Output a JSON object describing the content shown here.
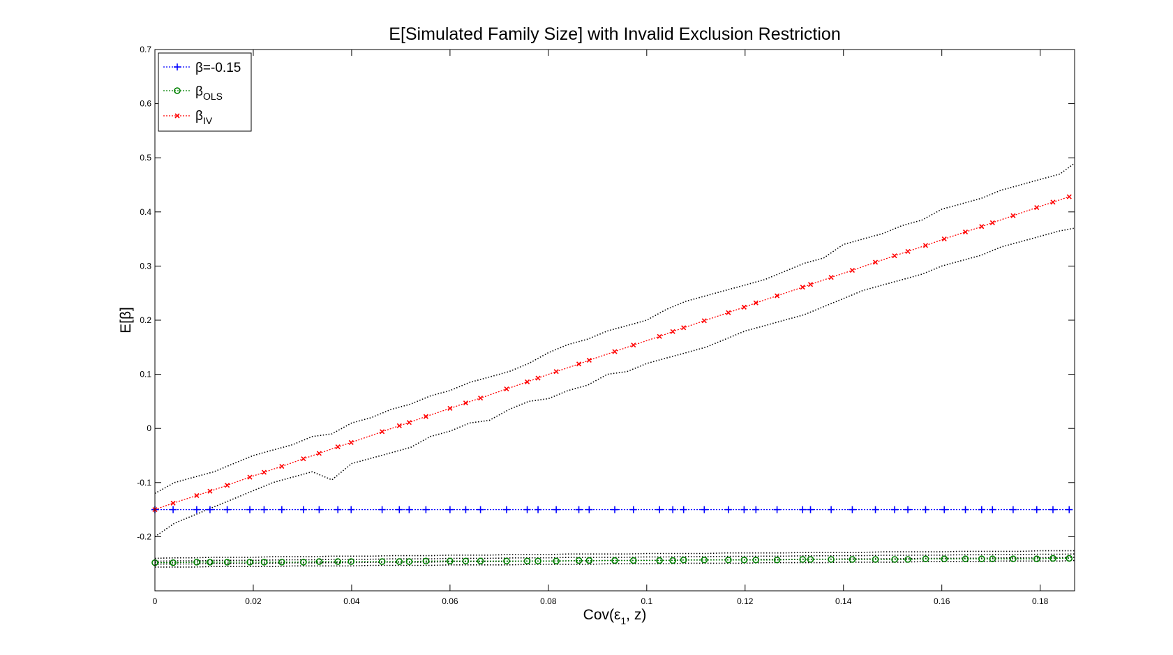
{
  "chart_data": {
    "type": "line",
    "title": "E[Simulated Family Size] with Invalid Exclusion Restriction",
    "xlabel": {
      "main": "Cov(ε",
      "sub": "1",
      "tail": ", z)"
    },
    "ylabel": "E[β]",
    "xlim": [
      0,
      0.187
    ],
    "ylim": [
      -0.3,
      0.7
    ],
    "x_ticks": [
      0,
      0.02,
      0.04,
      0.06,
      0.08,
      0.1,
      0.12,
      0.14,
      0.16,
      0.18
    ],
    "x_tick_labels": [
      "0",
      "0.02",
      "0.04",
      "0.06",
      "0.08",
      "0.1",
      "0.12",
      "0.14",
      "0.16",
      "0.18"
    ],
    "y_ticks": [
      -0.2,
      -0.1,
      0,
      0.1,
      0.2,
      0.3,
      0.4,
      0.5,
      0.6,
      0.7
    ],
    "y_tick_labels": [
      "-0.2",
      "-0.1",
      "0",
      "0.1",
      "0.2",
      "0.3",
      "0.4",
      "0.5",
      "0.6",
      "0.7"
    ],
    "grid": false,
    "legend_position": "top-left",
    "x": [
      0,
      0.0037,
      0.0085,
      0.0112,
      0.0147,
      0.0193,
      0.0222,
      0.0258,
      0.0302,
      0.0334,
      0.0372,
      0.0399,
      0.0462,
      0.0497,
      0.0517,
      0.0551,
      0.06,
      0.0632,
      0.0662,
      0.0715,
      0.0757,
      0.0779,
      0.0816,
      0.0862,
      0.0883,
      0.0935,
      0.0973,
      0.1026,
      0.1053,
      0.1075,
      0.1117,
      0.1166,
      0.1198,
      0.1222,
      0.1265,
      0.1317,
      0.1333,
      0.1375,
      0.1418,
      0.1465,
      0.1504,
      0.1531,
      0.1567,
      0.1605,
      0.1648,
      0.1681,
      0.1703,
      0.1745,
      0.1793,
      0.1826,
      0.1859
    ],
    "series": [
      {
        "name": "β=-0.15",
        "color": "#0000ff",
        "marker": "plus",
        "y": [
          -0.15,
          -0.15,
          -0.15,
          -0.15,
          -0.15,
          -0.15,
          -0.15,
          -0.15,
          -0.15,
          -0.15,
          -0.15,
          -0.15,
          -0.15,
          -0.15,
          -0.15,
          -0.15,
          -0.15,
          -0.15,
          -0.15,
          -0.15,
          -0.15,
          -0.15,
          -0.15,
          -0.15,
          -0.15,
          -0.15,
          -0.15,
          -0.15,
          -0.15,
          -0.15,
          -0.15,
          -0.15,
          -0.15,
          -0.15,
          -0.15,
          -0.15,
          -0.15,
          -0.15,
          -0.15,
          -0.15,
          -0.15,
          -0.15,
          -0.15,
          -0.15,
          -0.15,
          -0.15,
          -0.15,
          -0.15,
          -0.15,
          -0.15,
          -0.15
        ]
      },
      {
        "name": "β",
        "name_sub": "OLS",
        "color": "#008000",
        "marker": "circle",
        "y": [
          -0.248,
          -0.248,
          -0.247,
          -0.247,
          -0.247,
          -0.247,
          -0.247,
          -0.247,
          -0.247,
          -0.246,
          -0.246,
          -0.246,
          -0.246,
          -0.246,
          -0.246,
          -0.245,
          -0.245,
          -0.245,
          -0.245,
          -0.245,
          -0.245,
          -0.245,
          -0.245,
          -0.244,
          -0.244,
          -0.244,
          -0.244,
          -0.244,
          -0.244,
          -0.243,
          -0.243,
          -0.243,
          -0.243,
          -0.243,
          -0.243,
          -0.242,
          -0.242,
          -0.242,
          -0.242,
          -0.242,
          -0.242,
          -0.242,
          -0.241,
          -0.241,
          -0.241,
          -0.241,
          -0.241,
          -0.241,
          -0.241,
          -0.24,
          -0.24
        ]
      },
      {
        "name": "β",
        "name_sub": "IV",
        "color": "#ff0000",
        "marker": "x",
        "y": [
          -0.15,
          -0.138,
          -0.124,
          -0.116,
          -0.105,
          -0.09,
          -0.081,
          -0.07,
          -0.056,
          -0.046,
          -0.034,
          -0.026,
          -0.006,
          0.005,
          0.011,
          0.022,
          0.037,
          0.047,
          0.056,
          0.073,
          0.086,
          0.093,
          0.105,
          0.119,
          0.126,
          0.142,
          0.154,
          0.17,
          0.179,
          0.186,
          0.199,
          0.214,
          0.224,
          0.232,
          0.245,
          0.261,
          0.266,
          0.279,
          0.292,
          0.307,
          0.319,
          0.327,
          0.338,
          0.35,
          0.363,
          0.373,
          0.38,
          0.393,
          0.408,
          0.418,
          0.428
        ]
      }
    ],
    "band_x": [
      0,
      0.004,
      0.008,
      0.012,
      0.016,
      0.02,
      0.024,
      0.028,
      0.032,
      0.036,
      0.04,
      0.044,
      0.048,
      0.052,
      0.056,
      0.06,
      0.064,
      0.068,
      0.072,
      0.076,
      0.08,
      0.084,
      0.088,
      0.092,
      0.096,
      0.1,
      0.104,
      0.108,
      0.112,
      0.116,
      0.12,
      0.124,
      0.128,
      0.132,
      0.136,
      0.14,
      0.144,
      0.148,
      0.152,
      0.156,
      0.16,
      0.164,
      0.168,
      0.172,
      0.176,
      0.18,
      0.184,
      0.187
    ],
    "iv_upper": [
      -0.12,
      -0.1,
      -0.09,
      -0.08,
      -0.065,
      -0.05,
      -0.04,
      -0.03,
      -0.015,
      -0.01,
      0.01,
      0.02,
      0.035,
      0.045,
      0.06,
      0.07,
      0.085,
      0.095,
      0.105,
      0.12,
      0.14,
      0.155,
      0.165,
      0.18,
      0.19,
      0.2,
      0.22,
      0.235,
      0.245,
      0.255,
      0.265,
      0.275,
      0.29,
      0.305,
      0.315,
      0.34,
      0.35,
      0.36,
      0.375,
      0.385,
      0.405,
      0.415,
      0.425,
      0.44,
      0.45,
      0.46,
      0.47,
      0.49
    ],
    "iv_lower": [
      -0.2,
      -0.175,
      -0.16,
      -0.145,
      -0.13,
      -0.115,
      -0.1,
      -0.09,
      -0.08,
      -0.095,
      -0.065,
      -0.055,
      -0.045,
      -0.035,
      -0.015,
      -0.005,
      0.01,
      0.015,
      0.035,
      0.05,
      0.055,
      0.07,
      0.08,
      0.1,
      0.105,
      0.12,
      0.13,
      0.14,
      0.15,
      0.165,
      0.18,
      0.19,
      0.2,
      0.21,
      0.225,
      0.24,
      0.255,
      0.265,
      0.275,
      0.285,
      0.3,
      0.31,
      0.32,
      0.335,
      0.345,
      0.355,
      0.365,
      0.37
    ],
    "ols_upper": [
      -0.24,
      -0.239,
      -0.239,
      -0.238,
      -0.238,
      -0.238,
      -0.237,
      -0.237,
      -0.237,
      -0.236,
      -0.236,
      -0.236,
      -0.235,
      -0.235,
      -0.235,
      -0.234,
      -0.234,
      -0.234,
      -0.233,
      -0.233,
      -0.233,
      -0.232,
      -0.232,
      -0.232,
      -0.232,
      -0.231,
      -0.231,
      -0.231,
      -0.231,
      -0.23,
      -0.23,
      -0.23,
      -0.23,
      -0.229,
      -0.229,
      -0.229,
      -0.229,
      -0.228,
      -0.228,
      -0.228,
      -0.228,
      -0.227,
      -0.227,
      -0.227,
      -0.227,
      -0.226,
      -0.226,
      -0.226
    ],
    "ols_lower": [
      -0.256,
      -0.256,
      -0.256,
      -0.255,
      -0.255,
      -0.255,
      -0.255,
      -0.254,
      -0.254,
      -0.254,
      -0.254,
      -0.253,
      -0.253,
      -0.253,
      -0.253,
      -0.252,
      -0.252,
      -0.252,
      -0.252,
      -0.251,
      -0.251,
      -0.251,
      -0.251,
      -0.25,
      -0.25,
      -0.25,
      -0.25,
      -0.249,
      -0.249,
      -0.249,
      -0.249,
      -0.248,
      -0.248,
      -0.248,
      -0.248,
      -0.247,
      -0.247,
      -0.247,
      -0.247,
      -0.246,
      -0.246,
      -0.246,
      -0.246,
      -0.245,
      -0.245,
      -0.245,
      -0.245,
      -0.244
    ]
  }
}
